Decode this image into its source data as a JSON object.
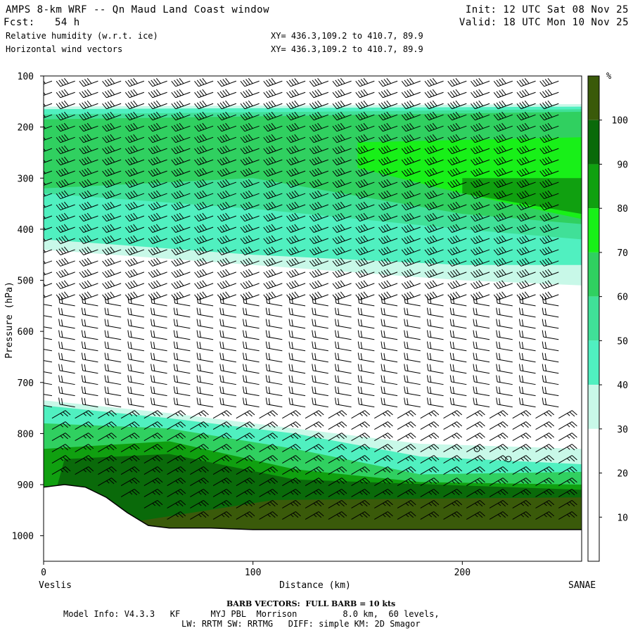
{
  "header": {
    "title": "AMPS 8-km WRF -- Qn Maud Land Coast window",
    "init": "Init: 12 UTC Sat 08 Nov 25",
    "fcst_label": "Fcst:",
    "fcst_value": "54 h",
    "valid": "Valid: 18 UTC Mon 10 Nov 25",
    "field1": "Relative humidity (w.r.t. ice)",
    "field2": "Horizontal wind vectors",
    "xy1": "XY= 436.3,109.2 to 410.7, 89.9",
    "xy2": "XY= 436.3,109.2 to 410.7, 89.9"
  },
  "footer": {
    "barb_note": "BARB VECTORS:  FULL BARB = 10 kts",
    "model_line1": "Model Info: V4.3.3   KF      MYJ PBL  Morrison         8.0 km,  60 levels,",
    "model_line2": "LW: RRTM SW: RRTMG   DIFF: simple KM: 2D Smagor"
  },
  "colors": {
    "rh_bands": [
      "#ffffff",
      "#ffffff",
      "#ffffff",
      "#c8f8e8",
      "#50f0c0",
      "#40e098",
      "#30d060",
      "#18f018",
      "#10a010",
      "#0a6a0a",
      "#3a5a0a"
    ],
    "terrain": "#ffffff",
    "barb": "#000000"
  },
  "chart_data": {
    "type": "heatmap",
    "title": "Relative humidity (w.r.t. ice)",
    "xlabel": "Distance (km)",
    "ylabel": "Pressure (hPa)",
    "x_start_label": "Veslis",
    "x_end_label": "SANAE",
    "xlim": [
      0,
      257
    ],
    "ylim": [
      1050,
      100
    ],
    "xticks": [
      0,
      100,
      200
    ],
    "yticks": [
      100,
      200,
      300,
      400,
      500,
      600,
      700,
      800,
      900,
      1000
    ],
    "colorbar": {
      "unit": "%",
      "levels": [
        10,
        20,
        30,
        40,
        50,
        60,
        70,
        80,
        90,
        100
      ]
    },
    "layers": [
      {
        "name": "upper moist layer 30%",
        "rh_min": 30,
        "top": [
          [
            0,
            160
          ],
          [
            257,
            155
          ]
        ],
        "bottom": [
          [
            0,
            440
          ],
          [
            100,
            470
          ],
          [
            200,
            500
          ],
          [
            257,
            510
          ]
        ]
      },
      {
        "name": "upper 40%",
        "rh_min": 40,
        "top": [
          [
            0,
            165
          ],
          [
            257,
            160
          ]
        ],
        "bottom": [
          [
            0,
            420
          ],
          [
            100,
            450
          ],
          [
            200,
            470
          ],
          [
            257,
            470
          ]
        ]
      },
      {
        "name": "upper 50%",
        "rh_min": 50,
        "top": [
          [
            0,
            175
          ],
          [
            257,
            165
          ]
        ],
        "bottom": [
          [
            0,
            330
          ],
          [
            100,
            360
          ],
          [
            200,
            400
          ],
          [
            257,
            420
          ]
        ]
      },
      {
        "name": "upper 60%",
        "rh_min": 60,
        "top": [
          [
            0,
            185
          ],
          [
            257,
            170
          ]
        ],
        "bottom": [
          [
            0,
            320
          ],
          [
            100,
            300
          ],
          [
            200,
            370
          ],
          [
            257,
            390
          ]
        ]
      },
      {
        "name": "upper 70%",
        "rh_min": 70,
        "top": [
          [
            150,
            230
          ],
          [
            257,
            220
          ]
        ],
        "bottom": [
          [
            150,
            280
          ],
          [
            200,
            330
          ],
          [
            257,
            380
          ]
        ]
      },
      {
        "name": "upper 80%",
        "rh_min": 80,
        "top": [
          [
            200,
            300
          ],
          [
            257,
            300
          ]
        ],
        "bottom": [
          [
            200,
            330
          ],
          [
            257,
            370
          ]
        ]
      },
      {
        "name": "lower moist layer 30%",
        "rh_min": 30,
        "top": [
          [
            0,
            735
          ],
          [
            60,
            760
          ],
          [
            120,
            790
          ],
          [
            180,
            820
          ],
          [
            257,
            830
          ]
        ],
        "bottom": [
          [
            0,
            1000
          ],
          [
            257,
            1000
          ]
        ]
      },
      {
        "name": "lower 40%",
        "rh_min": 40,
        "top": [
          [
            0,
            745
          ],
          [
            60,
            770
          ],
          [
            120,
            800
          ],
          [
            180,
            845
          ],
          [
            257,
            860
          ]
        ],
        "bottom": [
          [
            0,
            1000
          ],
          [
            257,
            1000
          ]
        ]
      },
      {
        "name": "lower 60%",
        "rh_min": 60,
        "top": [
          [
            0,
            780
          ],
          [
            60,
            790
          ],
          [
            120,
            830
          ],
          [
            180,
            880
          ],
          [
            257,
            875
          ]
        ],
        "bottom": [
          [
            0,
            1000
          ],
          [
            257,
            1000
          ]
        ]
      },
      {
        "name": "lower 80%",
        "rh_min": 80,
        "top": [
          [
            0,
            830
          ],
          [
            60,
            815
          ],
          [
            120,
            870
          ],
          [
            180,
            895
          ],
          [
            257,
            900
          ]
        ],
        "bottom": [
          [
            0,
            1000
          ],
          [
            257,
            1000
          ]
        ]
      },
      {
        "name": "lower 90%",
        "rh_min": 90,
        "top": [
          [
            10,
            850
          ],
          [
            60,
            840
          ],
          [
            120,
            890
          ],
          [
            257,
            910
          ]
        ],
        "bottom": [
          [
            0,
            1000
          ],
          [
            257,
            1000
          ]
        ]
      },
      {
        "name": "lower 100%",
        "rh_min": 100,
        "top": [
          [
            110,
            930
          ],
          [
            257,
            925
          ]
        ],
        "bottom": [
          [
            0,
            1000
          ],
          [
            257,
            1000
          ]
        ]
      }
    ],
    "terrain": [
      [
        0,
        905
      ],
      [
        10,
        900
      ],
      [
        20,
        905
      ],
      [
        30,
        925
      ],
      [
        40,
        955
      ],
      [
        50,
        980
      ],
      [
        60,
        985
      ],
      [
        80,
        985
      ],
      [
        100,
        988
      ],
      [
        150,
        988
      ],
      [
        257,
        988
      ]
    ],
    "barbs": {
      "upper_layer": {
        "p_max": 550,
        "speed_kts": 40,
        "dir_deg": 250
      },
      "mid_layer": {
        "p_min": 550,
        "p_max": 760,
        "speed_kts": 20,
        "dir_deg": 280
      },
      "lower_layer": {
        "p_min": 760,
        "speed_kts": 15,
        "dir_deg": 60
      }
    },
    "calm_marks": [
      [
        207,
        830
      ],
      [
        222,
        850
      ]
    ]
  }
}
